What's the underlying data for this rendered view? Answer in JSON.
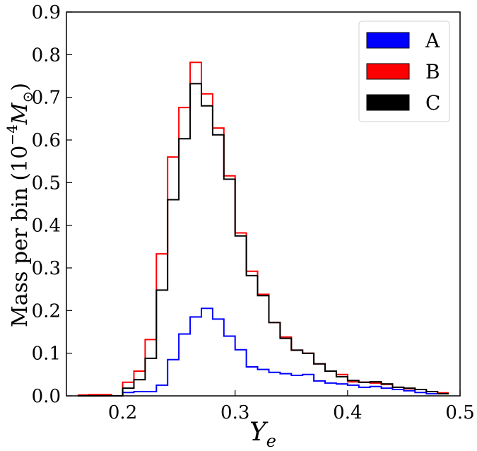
{
  "chart_data": {
    "type": "histogram-step",
    "xlabel": {
      "main": "Y",
      "sub": "e"
    },
    "ylabel": {
      "prefix": "Mass per bin (10",
      "exponent": "−4",
      "symbol": "M",
      "sub": "⊙",
      "suffix": ")"
    },
    "xlim": [
      0.15,
      0.5
    ],
    "ylim": [
      0,
      0.9
    ],
    "xticks": [
      "0.2",
      "0.3",
      "0.4",
      "0.5"
    ],
    "yticks": [
      "0.0",
      "0.1",
      "0.2",
      "0.3",
      "0.4",
      "0.5",
      "0.6",
      "0.7",
      "0.8",
      "0.9"
    ],
    "bin_width": 0.01,
    "bin_edges_start": 0.16,
    "legend_position": "top-right",
    "series": [
      {
        "name": "A",
        "color": "#0000ff",
        "values": [
          0,
          0,
          0,
          0,
          0.008,
          0.01,
          0.01,
          0.025,
          0.085,
          0.145,
          0.185,
          0.205,
          0.18,
          0.14,
          0.108,
          0.068,
          0.062,
          0.055,
          0.052,
          0.048,
          0.05,
          0.035,
          0.03,
          0.028,
          0.025,
          0.02,
          0.022,
          0.018,
          0.015,
          0.012,
          0.008,
          0.005,
          0.005
        ]
      },
      {
        "name": "B",
        "color": "#ff0000",
        "values": [
          0.002,
          0.003,
          0.003,
          0,
          0.032,
          0.058,
          0.132,
          0.333,
          0.56,
          0.676,
          0.782,
          0.708,
          0.628,
          0.516,
          0.382,
          0.292,
          0.238,
          0.172,
          0.138,
          0.107,
          0.1,
          0.075,
          0.058,
          0.05,
          0.033,
          0.032,
          0.03,
          0.027,
          0.02,
          0.017,
          0.015,
          0.01,
          0.007
        ]
      },
      {
        "name": "C",
        "color": "#000000",
        "values": [
          0,
          0,
          0,
          0,
          0.018,
          0.038,
          0.088,
          0.248,
          0.46,
          0.603,
          0.732,
          0.68,
          0.612,
          0.508,
          0.375,
          0.282,
          0.235,
          0.172,
          0.135,
          0.107,
          0.1,
          0.075,
          0.058,
          0.045,
          0.036,
          0.032,
          0.033,
          0.028,
          0.02,
          0.018,
          0.015,
          0.01,
          0.005
        ]
      }
    ]
  }
}
